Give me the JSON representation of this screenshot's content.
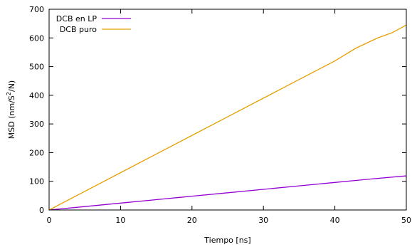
{
  "chart_data": {
    "type": "line",
    "title": "",
    "xlabel": "Tiempo [ns]",
    "ylabel_parts": {
      "main": "MSD (nm/S",
      "sup": "2",
      "end": "/N)"
    },
    "xlim": [
      0,
      50
    ],
    "ylim": [
      0,
      700
    ],
    "xticks": [
      0,
      10,
      20,
      30,
      40,
      50
    ],
    "yticks": [
      0,
      100,
      200,
      300,
      400,
      500,
      600,
      700
    ],
    "grid": false,
    "legend_position": "top-left",
    "series": [
      {
        "name": "DCB en LP",
        "color": "#9400d3",
        "x": [
          0,
          5,
          10,
          15,
          20,
          25,
          30,
          35,
          40,
          45,
          50
        ],
        "y": [
          0,
          12,
          24,
          36,
          48,
          60,
          72,
          84,
          96,
          108,
          119
        ]
      },
      {
        "name": "DCB puro",
        "color": "#e69f00",
        "x": [
          0,
          5,
          10,
          15,
          20,
          25,
          30,
          35,
          40,
          43,
          46,
          48,
          50
        ],
        "y": [
          0,
          65,
          130,
          195,
          260,
          325,
          390,
          455,
          520,
          565,
          600,
          618,
          645
        ]
      }
    ]
  }
}
